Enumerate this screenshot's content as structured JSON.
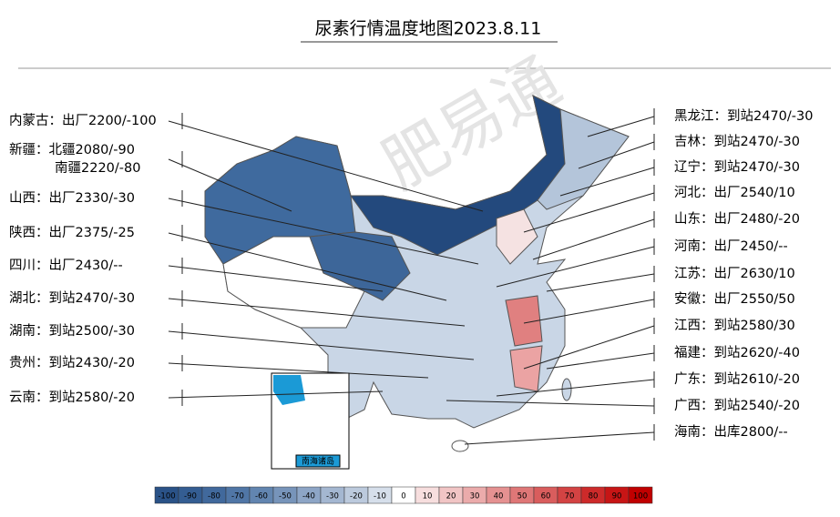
{
  "title": "尿素行情温度地图2023.8.11",
  "watermark": "肥易通",
  "inset_label": "南海诸岛",
  "left_labels": [
    "内蒙古：出厂2200/-100",
    "新疆：北疆2080/-90",
    "南疆2220/-80",
    "山西：出厂2330/-30",
    "陕西：出厂2375/-25",
    "四川：出厂2430/--",
    "湖北：到站2470/-30",
    "湖南：到站2500/-30",
    "贵州：到站2430/-20",
    "云南：到站2580/-20"
  ],
  "right_labels": [
    "黑龙江：到站2470/-30",
    "吉林：到站2470/-30",
    "辽宁：到站2470/-30",
    "河北：出厂2540/10",
    "山东：出厂2480/-20",
    "河南：出厂2450/--",
    "江苏：出厂2630/10",
    "安徽：出厂2550/50",
    "江西：到站2580/30",
    "福建：到站2620/-40",
    "广东：到站2610/-20",
    "广西：到站2540/-20",
    "海南：出库2800/--"
  ],
  "legend": [
    {
      "label": "-100",
      "color": "#2a5287"
    },
    {
      "label": "-90",
      "color": "#345d92"
    },
    {
      "label": "-80",
      "color": "#41699c"
    },
    {
      "label": "-70",
      "color": "#5076a6"
    },
    {
      "label": "-60",
      "color": "#6285b0"
    },
    {
      "label": "-50",
      "color": "#7794ba"
    },
    {
      "label": "-40",
      "color": "#8da5c6"
    },
    {
      "label": "-30",
      "color": "#a4b7d1"
    },
    {
      "label": "-20",
      "color": "#bccadd"
    },
    {
      "label": "-10",
      "color": "#d6dfeb"
    },
    {
      "label": "0",
      "color": "#ffffff"
    },
    {
      "label": "10",
      "color": "#f7dede"
    },
    {
      "label": "20",
      "color": "#f1c5c5"
    },
    {
      "label": "30",
      "color": "#ebabab"
    },
    {
      "label": "40",
      "color": "#e59191"
    },
    {
      "label": "50",
      "color": "#df7777"
    },
    {
      "label": "60",
      "color": "#d95d5d"
    },
    {
      "label": "70",
      "color": "#d34343"
    },
    {
      "label": "80",
      "color": "#cd2a2a"
    },
    {
      "label": "90",
      "color": "#c71515"
    },
    {
      "label": "100",
      "color": "#c00000"
    }
  ]
}
